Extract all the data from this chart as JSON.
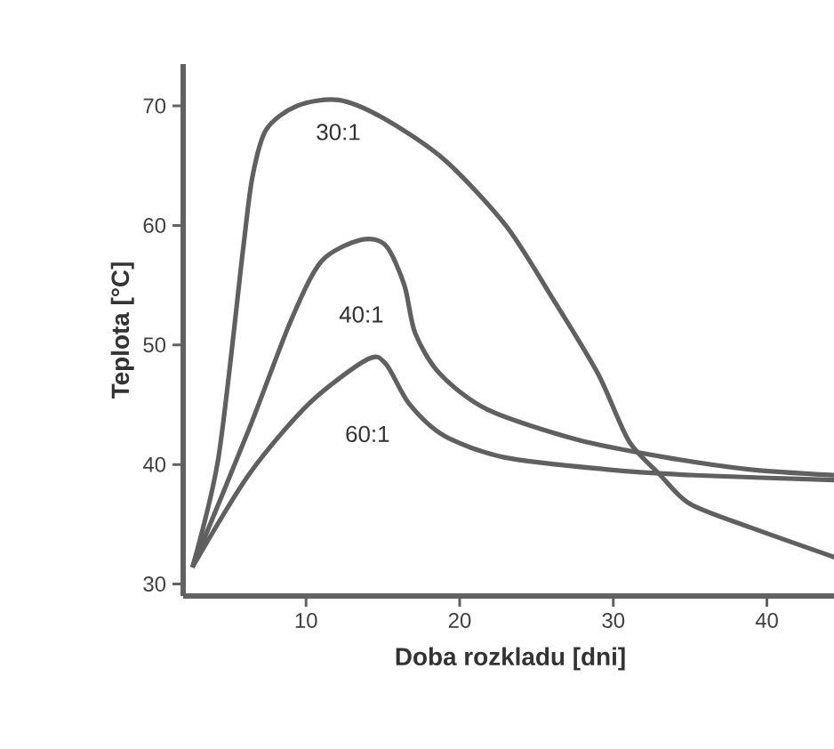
{
  "chart_data": {
    "type": "line",
    "xlabel": "Doba rozkladu [dni]",
    "ylabel": "Teplota [°C]",
    "xlim": [
      2,
      44.6
    ],
    "ylim": [
      29,
      73.5
    ],
    "xticks": [
      10,
      20,
      30,
      40
    ],
    "yticks": [
      30,
      40,
      50,
      60,
      70
    ],
    "grid": false,
    "legend": false,
    "marker": "none",
    "line_style": "solid",
    "series": [
      {
        "name": "30:1",
        "color": "#606060",
        "x": [
          2.6,
          4.3,
          5.9,
          6.5,
          7.4,
          9.4,
          12.1,
          15,
          19,
          23,
          26,
          29,
          31,
          33,
          35,
          39,
          44.5
        ],
        "values": [
          31.4,
          40.6,
          58,
          64,
          68,
          70,
          70.5,
          69,
          65.5,
          60,
          54,
          47.6,
          42,
          39.2,
          36.7,
          34.7,
          32.2
        ]
      },
      {
        "name": "40:1",
        "color": "#606060",
        "x": [
          2.6,
          6.3,
          9,
          11,
          13.6,
          15.2,
          16.4,
          17.1,
          18.7,
          21.8,
          27.6,
          33.4,
          38.8,
          44.5
        ],
        "values": [
          31.4,
          43,
          52,
          57,
          58.8,
          58.3,
          55,
          51,
          47.6,
          44.6,
          42.1,
          40.6,
          39.6,
          39.1
        ]
      },
      {
        "name": "60:1",
        "color": "#606060",
        "x": [
          2.6,
          6.3,
          10.2,
          14,
          15.2,
          16.7,
          19,
          22.9,
          29.5,
          35.3,
          44.5
        ],
        "values": [
          31.4,
          39.2,
          45.1,
          48.8,
          48.4,
          45.1,
          42.4,
          40.6,
          39.6,
          39.1,
          38.7
        ]
      }
    ]
  }
}
